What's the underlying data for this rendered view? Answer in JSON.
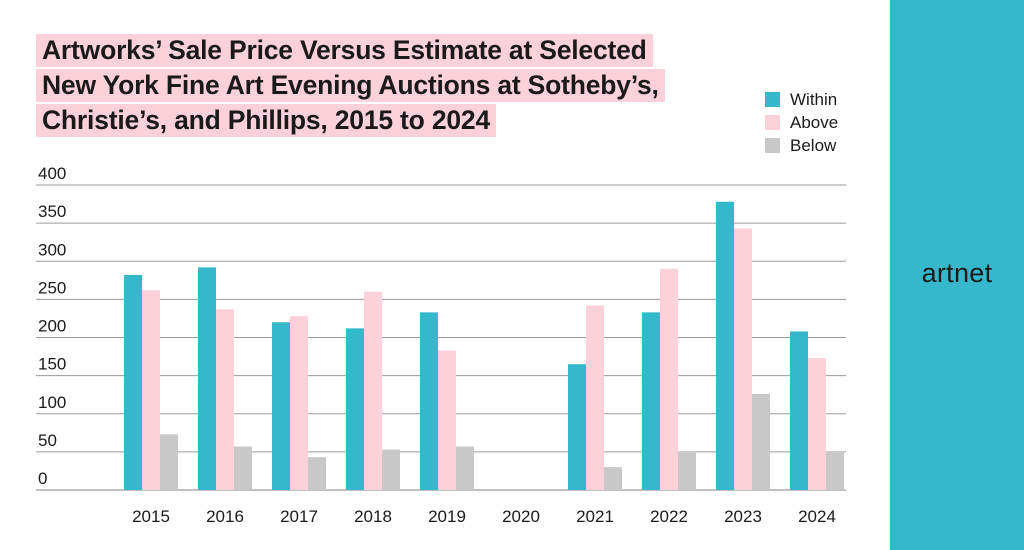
{
  "chart_data": {
    "type": "bar",
    "title": [
      "Artworks’ Sale Price Versus Estimate at Selected",
      "New York Fine Art Evening Auctions at Sotheby’s,",
      "Christie’s, and Phillips, 2015 to 2024"
    ],
    "xlabel": "",
    "ylabel": "",
    "ylim": [
      0,
      400
    ],
    "yticks": [
      0,
      50,
      100,
      150,
      200,
      250,
      300,
      350,
      400
    ],
    "grid": true,
    "legend_position": "top-right",
    "categories": [
      "2015",
      "2016",
      "2017",
      "2018",
      "2019",
      "2020",
      "2021",
      "2022",
      "2023",
      "2024"
    ],
    "series": [
      {
        "name": "Within",
        "color": "#35b7cc",
        "values": [
          282,
          292,
          220,
          212,
          233,
          0,
          165,
          233,
          378,
          208
        ]
      },
      {
        "name": "Above",
        "color": "#fdd1da",
        "values": [
          262,
          237,
          228,
          260,
          183,
          0,
          242,
          290,
          343,
          173
        ]
      },
      {
        "name": "Below",
        "color": "#c8c8c8",
        "values": [
          73,
          57,
          43,
          53,
          57,
          0,
          30,
          51,
          126,
          51
        ]
      }
    ]
  },
  "brand": {
    "logo": "artnet",
    "panel_color": "#35b7cc"
  }
}
